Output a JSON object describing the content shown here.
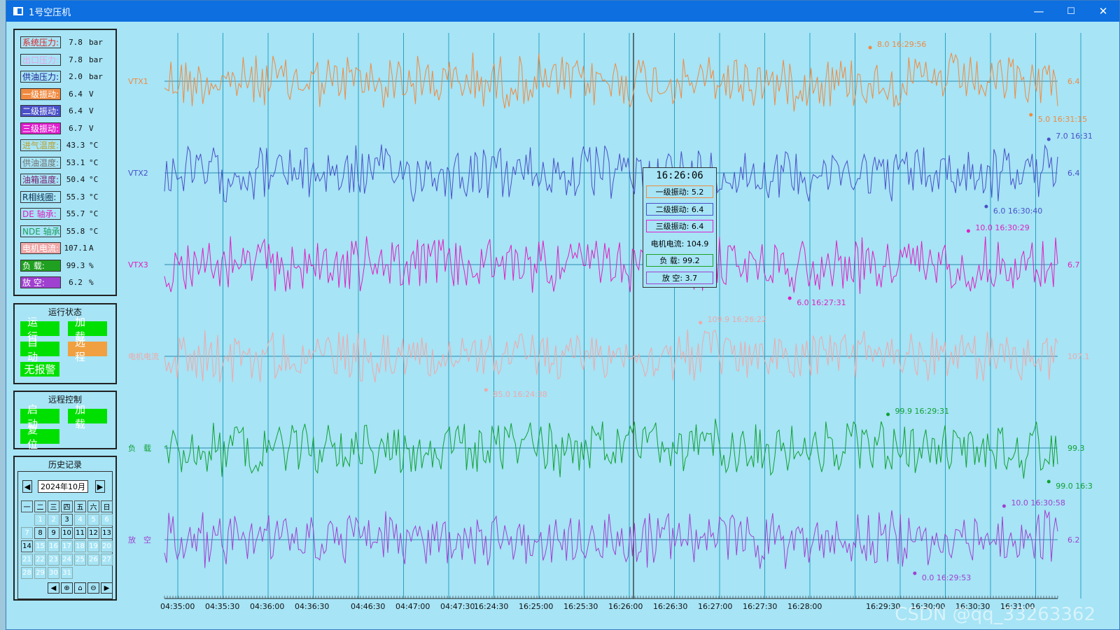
{
  "window": {
    "title": "1号空压机",
    "minimize": "—",
    "maximize": "☐",
    "close": "✕"
  },
  "metrics": [
    {
      "label": "系统压力:",
      "value": "7.8",
      "unit": "bar",
      "fg": "#e02020",
      "bg": "#a6e4f6"
    },
    {
      "label": "出口压力:",
      "value": "7.8",
      "unit": "bar",
      "fg": "#e8a0e8",
      "bg": "#a6e4f6"
    },
    {
      "label": "供油压力:",
      "value": "2.0",
      "unit": "bar",
      "fg": "#1a1a90",
      "bg": "#a6e4f6"
    },
    {
      "label": "一级振动:",
      "value": "6.4",
      "unit": "V",
      "fg": "#ffffff",
      "bg": "#f08a40"
    },
    {
      "label": "二级振动:",
      "value": "6.4",
      "unit": "V",
      "fg": "#ffffff",
      "bg": "#4a50c8"
    },
    {
      "label": "三级振动:",
      "value": "6.7",
      "unit": "V",
      "fg": "#ffffff",
      "bg": "#e020d0"
    },
    {
      "label": "进气温度:",
      "value": "43.3",
      "unit": "°C",
      "fg": "#b8a030",
      "bg": "#a6e4f6"
    },
    {
      "label": "供油温度:",
      "value": "53.1",
      "unit": "°C",
      "fg": "#707070",
      "bg": "#a6e4f6"
    },
    {
      "label": "油箱温度:",
      "value": "50.4",
      "unit": "°C",
      "fg": "#7a1a6a",
      "bg": "#a6e4f6"
    },
    {
      "label": "R相线圈:",
      "value": "55.3",
      "unit": "°C",
      "fg": "#103050",
      "bg": "#a6e4f6"
    },
    {
      "label": "DE 轴承:",
      "value": "55.7",
      "unit": "°C",
      "fg": "#e020c0",
      "bg": "#a6e4f6"
    },
    {
      "label": "NDE 轴承:",
      "value": "55.8",
      "unit": "°C",
      "fg": "#20a060",
      "bg": "#a6e4f6"
    },
    {
      "label": "电机电流:",
      "value": "107.1",
      "unit": "A",
      "fg": "#ffffff",
      "bg": "#f0a8a8"
    },
    {
      "label": "负 载:",
      "value": "99.3",
      "unit": "%",
      "fg": "#ffffff",
      "bg": "#20a020"
    },
    {
      "label": "放 空:",
      "value": "6.2",
      "unit": "%",
      "fg": "#ffffff",
      "bg": "#a040d0"
    }
  ],
  "status": {
    "title": "运行状态",
    "buttons": [
      {
        "label": "运行",
        "color": "#00e000"
      },
      {
        "label": "加载",
        "color": "#00e000"
      },
      {
        "label": "自动",
        "color": "#00e000"
      },
      {
        "label": "远程",
        "color": "#f0a040"
      },
      {
        "label": "无报警",
        "color": "#00e000"
      }
    ]
  },
  "remote": {
    "title": "远程控制",
    "buttons": [
      {
        "label": "启动"
      },
      {
        "label": "加载"
      },
      {
        "label": "复位"
      }
    ]
  },
  "history": {
    "title": "历史记录",
    "month": "2024年10月",
    "prev": "◀",
    "next": "▶",
    "weekdays": [
      "一",
      "二",
      "三",
      "四",
      "五",
      "六",
      "日"
    ],
    "days": [
      "",
      "1",
      "2",
      "3",
      "4",
      "5",
      "6",
      "7",
      "8",
      "9",
      "10",
      "11",
      "12",
      "13",
      "14",
      "15",
      "16",
      "17",
      "18",
      "19",
      "20",
      "21",
      "22",
      "23",
      "24",
      "25",
      "26",
      "27",
      "28",
      "29",
      "30",
      "31"
    ],
    "tools": [
      "◀",
      "⊕",
      "⌂",
      "⊖",
      "▶"
    ]
  },
  "tooltip": {
    "time": "16:26:06",
    "rows": [
      {
        "text": "一级振动: 5.2",
        "bg": "#a6e4f6",
        "border": "#f08a40"
      },
      {
        "text": "二级振动: 6.4",
        "bg": "#a6e4f6",
        "border": "#4a50c8"
      },
      {
        "text": "三级振动: 6.4",
        "bg": "#a6e4f6",
        "border": "#e020d0"
      },
      {
        "text": "电机电流: 104.9",
        "bg": "#a6e4f6",
        "border": "#a6e4f6"
      },
      {
        "text": "负   载: 99.2",
        "bg": "#a6e4f6",
        "border": "#20a020"
      },
      {
        "text": "放   空: 3.7",
        "bg": "#a6e4f6",
        "border": "#a040d0"
      }
    ]
  },
  "chart_data": {
    "type": "line",
    "x_ticks": [
      "04:35:00",
      "04:35:30",
      "04:36:00",
      "04:36:30",
      "04:46:30",
      "04:47:00",
      "04:47:30",
      "16:24:30",
      "16:25:00",
      "16:25:30",
      "16:26:00",
      "16:26:30",
      "16:27:00",
      "16:27:30",
      "16:28:00",
      "16:29:30",
      "16:30:00",
      "16:30:30",
      "16:31:00"
    ],
    "series": [
      {
        "name": "VTX1",
        "color": "#f08a40",
        "current": "6.4",
        "max_label": "8.0 16:29:56",
        "min_label": "5.0 16:31:15",
        "max_pos": 0.79,
        "min_pos": 0.97
      },
      {
        "name": "VTX2",
        "color": "#4a50c8",
        "current": "6.4",
        "max_label": "7.0 16:31",
        "min_label": "6.0 16:30:40",
        "max_pos": 0.99,
        "min_pos": 0.92
      },
      {
        "name": "VTX3",
        "color": "#e020c0",
        "current": "6.7",
        "max_label": "10.0 16:30:29",
        "min_label": "6.0 16:27:31",
        "max_pos": 0.9,
        "min_pos": 0.7
      },
      {
        "name": "电机电流",
        "color": "#f0a8a8",
        "current": "107.1",
        "max_label": "109.9 16:26:22",
        "min_label": "85.0 16:24:38",
        "max_pos": 0.6,
        "min_pos": 0.36
      },
      {
        "name": "负　载",
        "color": "#10a030",
        "current": "99.3",
        "max_label": "99.9 16:29:31",
        "min_label": "99.0 16:3",
        "max_pos": 0.81,
        "min_pos": 0.99
      },
      {
        "name": "放　空",
        "color": "#a040d0",
        "current": "6.2",
        "max_label": "10.0 16:30:58",
        "min_label": "0.0 16:29:53",
        "max_pos": 0.94,
        "min_pos": 0.84
      }
    ],
    "cursor_time": "16:26:06",
    "grid": true
  },
  "watermark": "CSDN @qq_33263362"
}
